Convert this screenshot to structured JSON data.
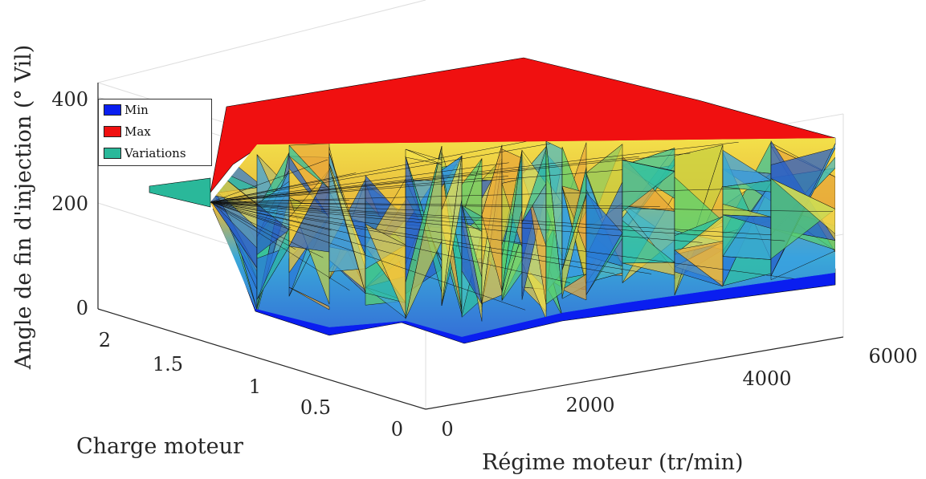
{
  "chart_data": {
    "type": "3d-surface",
    "zlabel": "Angle de fin d'injection (° Vil)",
    "xlabel": "Régime moteur (tr/min)",
    "ylabel": "Charge moteur",
    "x_ticks": [
      "0",
      "2000",
      "4000",
      "6000"
    ],
    "y_ticks": [
      "0",
      "0.5",
      "1",
      "1.5",
      "2"
    ],
    "z_ticks": [
      "0",
      "200",
      "400"
    ],
    "xlim": [
      0,
      6000
    ],
    "ylim": [
      0,
      2.2
    ],
    "zlim": [
      0,
      400
    ],
    "grid": true,
    "legend_position": "top-left",
    "legend": [
      {
        "label": "Min",
        "color": "#0a1ef0"
      },
      {
        "label": "Max",
        "color": "#f01010"
      },
      {
        "label": "Variations",
        "color": "#2ab89a"
      }
    ],
    "series": [
      {
        "name": "Min",
        "surface": "lower bound",
        "z_approx": [
          0,
          60
        ]
      },
      {
        "name": "Max",
        "surface": "upper bound",
        "z_approx": [
          330,
          380
        ]
      },
      {
        "name": "Variations",
        "surface": "triangulated between Min and Max",
        "z_approx": [
          60,
          330
        ]
      }
    ]
  }
}
